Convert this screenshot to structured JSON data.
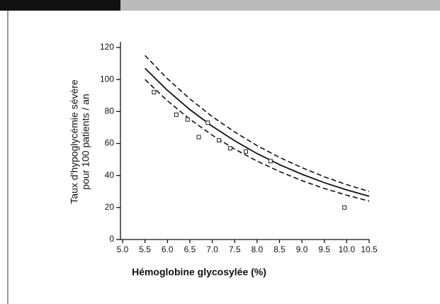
{
  "chart_data": {
    "type": "scatter",
    "xlabel": "Hémoglobine glycosylée (%)",
    "ylabel": [
      "Taux d'hypoglycémie sévère",
      "pour 100 patients / an"
    ],
    "x": [
      5.7,
      6.2,
      6.45,
      6.7,
      6.9,
      7.15,
      7.4,
      7.75,
      8.3,
      9.95
    ],
    "values": [
      92,
      78,
      75,
      64,
      73,
      62,
      57,
      55,
      49,
      20
    ],
    "color": "#222222",
    "curves": [
      {
        "x": [
          5.5,
          6.0,
          6.5,
          7.0,
          7.5,
          8.0,
          8.5,
          9.0,
          9.5,
          10.0,
          10.5
        ],
        "values": [
          107,
          93.2,
          81.2,
          70.8,
          61.7,
          53.7,
          46.8,
          40.8,
          35.5,
          31.0,
          27.0
        ],
        "dashed": false,
        "color": "#111111"
      },
      {
        "x": [
          5.5,
          6.0,
          6.5,
          7.0,
          7.5,
          8.0,
          8.5,
          9.0,
          9.5,
          10.0,
          10.5
        ],
        "values": [
          115,
          100.5,
          87.9,
          76.8,
          67.2,
          58.7,
          51.3,
          44.9,
          39.2,
          34.3,
          30.0
        ],
        "dashed": true,
        "color": "#111111"
      },
      {
        "x": [
          5.5,
          6.0,
          6.5,
          7.0,
          7.5,
          8.0,
          8.5,
          9.0,
          9.5,
          10.0,
          10.5
        ],
        "values": [
          100,
          86.7,
          75.2,
          65.2,
          56.5,
          49.0,
          42.5,
          36.8,
          31.9,
          27.7,
          24.0
        ],
        "dashed": true,
        "color": "#111111"
      }
    ],
    "xlim": [
      5.0,
      10.5
    ],
    "xticks": [
      {
        "value": 5,
        "label": "5.0"
      },
      5.5,
      {
        "value": 6,
        "label": "6.0"
      },
      6.5,
      {
        "value": 7,
        "label": "7.0"
      },
      7.5,
      {
        "value": 8,
        "label": "8.0"
      },
      8.5,
      {
        "value": 9,
        "label": "9.0"
      },
      9.5,
      {
        "value": 10,
        "label": "10.0"
      },
      10.5
    ],
    "ylim": [
      0,
      120
    ],
    "yticks": [
      0,
      20,
      40,
      60,
      80,
      100,
      120
    ],
    "grid": false
  }
}
